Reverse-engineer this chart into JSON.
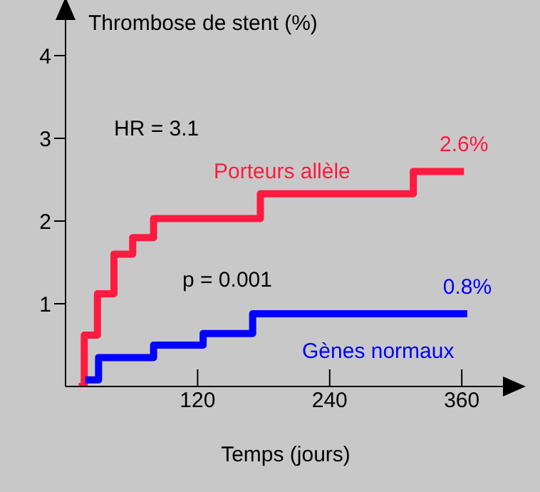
{
  "chart_data": {
    "type": "step",
    "ylabel": "Thrombose de stent (%)",
    "xlabel": "Temps (jours)",
    "xlim": [
      0,
      400
    ],
    "ylim": [
      0,
      4.5
    ],
    "xticks": [
      120,
      240,
      360
    ],
    "yticks": [
      1,
      2,
      3,
      4
    ],
    "legend": false,
    "marker": "none",
    "line_style": "solid",
    "series": [
      {
        "name": "Porteurs allèle",
        "color": "#ff1a40",
        "x": [
          12,
          17,
          29,
          44,
          61,
          80,
          177,
          316,
          362
        ],
        "values": [
          0,
          0.62,
          1.12,
          1.6,
          1.8,
          2.03,
          2.33,
          2.6,
          2.6
        ]
      },
      {
        "name": "Gènes normaux",
        "color": "#0000ff",
        "x": [
          18,
          30,
          80,
          125,
          170,
          365
        ],
        "values": [
          0.08,
          0.35,
          0.5,
          0.64,
          0.88,
          0.88
        ]
      }
    ],
    "annotations": [
      "HR = 3.1",
      "p = 0.001",
      {
        "text": "2.6%",
        "x": 362,
        "y": 2.6
      },
      {
        "text": "0.8%",
        "x": 365,
        "y": 0.88
      }
    ]
  }
}
